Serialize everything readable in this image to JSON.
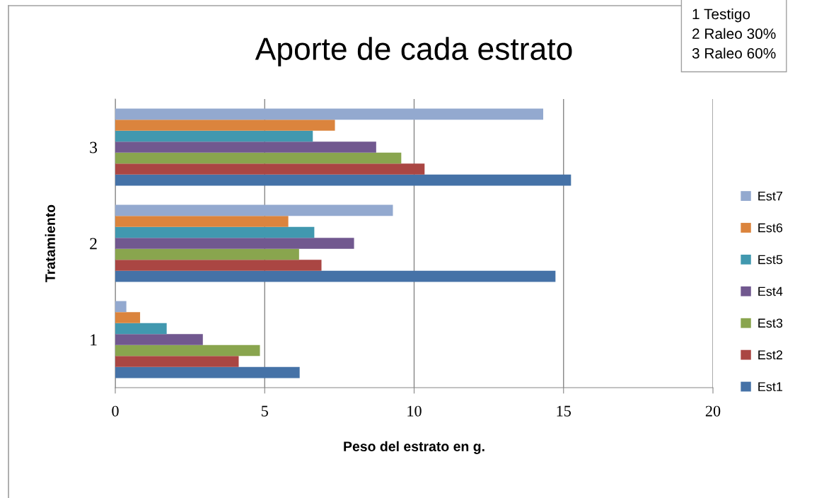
{
  "chart_data": {
    "type": "bar",
    "orientation": "horizontal",
    "title": "Aporte de cada estrato",
    "xlabel": "Peso del estrato en g.",
    "ylabel": "Tratamiento",
    "categories": [
      "3",
      "2",
      "1"
    ],
    "series": [
      {
        "name": "Est1",
        "color": "#4572a7",
        "values": [
          15.25,
          14.73,
          6.17
        ]
      },
      {
        "name": "Est2",
        "color": "#aa4643",
        "values": [
          10.35,
          6.9,
          4.13
        ]
      },
      {
        "name": "Est3",
        "color": "#89a54e",
        "values": [
          9.57,
          6.15,
          4.84
        ]
      },
      {
        "name": "Est4",
        "color": "#71588f",
        "values": [
          8.73,
          7.99,
          2.93
        ]
      },
      {
        "name": "Est5",
        "color": "#4198af",
        "values": [
          6.61,
          6.66,
          1.72
        ]
      },
      {
        "name": "Est6",
        "color": "#db843d",
        "values": [
          7.35,
          5.79,
          0.83
        ]
      },
      {
        "name": "Est7",
        "color": "#93a9cf",
        "values": [
          14.32,
          9.29,
          0.37
        ]
      }
    ],
    "xlim": [
      0,
      20
    ],
    "xticks": [
      0,
      5,
      10,
      15,
      20
    ],
    "grid": "x",
    "legend": "right",
    "annotations": [
      "1 Testigo",
      "2 Raleo 30%",
      "3 Raleo 60%"
    ]
  }
}
